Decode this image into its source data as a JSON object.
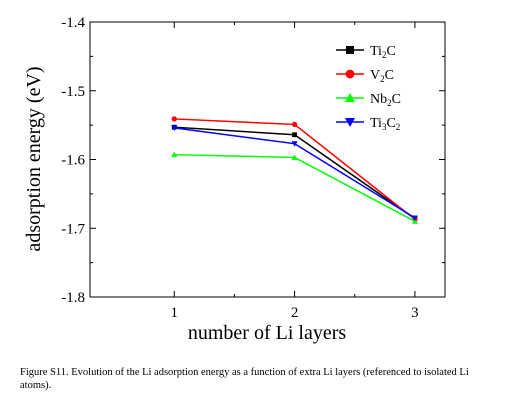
{
  "chart_data": {
    "type": "line",
    "xlabel": "number of Li layers",
    "ylabel": "adsorption energy (eV)",
    "x": [
      1,
      2,
      3
    ],
    "xticks": [
      "1",
      "2",
      "3"
    ],
    "xlim": [
      0.3,
      3.25
    ],
    "ylim": [
      -1.8,
      -1.4
    ],
    "yticks": [
      "-1.4",
      "-1.5",
      "-1.6",
      "-1.7",
      "-1.8"
    ],
    "ytick_values": [
      -1.4,
      -1.5,
      -1.6,
      -1.7,
      -1.8
    ],
    "grid": false,
    "legend_position": "top-right",
    "series": [
      {
        "name": "Ti2C",
        "name_parts": [
          [
            "Ti",
            ""
          ],
          [
            "2",
            "sub"
          ],
          [
            "C",
            ""
          ]
        ],
        "values": [
          -1.553,
          -1.564,
          -1.686
        ],
        "color": "#000000",
        "marker": "square"
      },
      {
        "name": "V2C",
        "name_parts": [
          [
            "V",
            ""
          ],
          [
            "2",
            "sub"
          ],
          [
            "C",
            ""
          ]
        ],
        "values": [
          -1.541,
          -1.549,
          -1.687
        ],
        "color": "#ff0000",
        "marker": "circle"
      },
      {
        "name": "Nb2C",
        "name_parts": [
          [
            "Nb",
            ""
          ],
          [
            "2",
            "sub"
          ],
          [
            "C",
            ""
          ]
        ],
        "values": [
          -1.593,
          -1.597,
          -1.69
        ],
        "color": "#00ff00",
        "marker": "triangle-up"
      },
      {
        "name": "Ti3C2",
        "name_parts": [
          [
            "Ti",
            ""
          ],
          [
            "3",
            "sub"
          ],
          [
            "C",
            ""
          ],
          [
            "2",
            "sub"
          ]
        ],
        "values": [
          -1.554,
          -1.577,
          -1.685
        ],
        "color": "#0000ff",
        "marker": "triangle-down"
      }
    ]
  },
  "caption": "Figure S11. Evolution of the Li adsorption energy as a function of extra Li layers (referenced to isolated Li atoms)."
}
